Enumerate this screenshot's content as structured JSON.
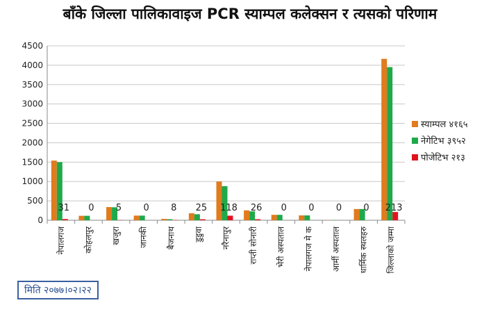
{
  "chart_data": {
    "type": "bar",
    "title": "बाँके जिल्ला पालिकावाइज PCR स्याम्पल कलेक्सन र त्यसको परिणाम",
    "categories": [
      "नेपालगज",
      "कोहलपुर",
      "खजुरा",
      "जानकी",
      "बैजनाथ",
      "डुडुवा",
      "नरैनापुर",
      "राप्ती सोनारी",
      "भेरी अस्पताल",
      "नेपालगज मे क",
      "आर्मी अस्पताल",
      "धार्मिक स्थलहरु",
      "जिल्लाको जम्मा"
    ],
    "series": [
      {
        "name": "स्याम्पल ४१६५",
        "color": "#e07b1e",
        "values": [
          1540,
          115,
          340,
          120,
          35,
          180,
          1000,
          255,
          140,
          125,
          5,
          290,
          4165
        ]
      },
      {
        "name": "नेगेटिभ ३९५२",
        "color": "#1fa94b",
        "values": [
          1500,
          115,
          335,
          120,
          27,
          155,
          880,
          230,
          140,
          125,
          5,
          290,
          3952
        ]
      },
      {
        "name": "पोजेटिभ  २१३",
        "color": "#e0141e",
        "values": [
          31,
          0,
          5,
          0,
          8,
          25,
          118,
          26,
          0,
          0,
          0,
          0,
          213
        ]
      }
    ],
    "data_labels": [
      "31",
      "0",
      "5",
      "0",
      "8",
      "25",
      "118",
      "26",
      "0",
      "0",
      "0",
      "0",
      "213"
    ],
    "yticks": [
      "0",
      "500",
      "1000",
      "1500",
      "2000",
      "2500",
      "3000",
      "3500",
      "4000",
      "4500"
    ],
    "ylim": [
      0,
      4500
    ],
    "grid": true,
    "legend_position": "right"
  },
  "footer": {
    "date_label": "मिति २०७७।०२।२२",
    "box_color": "#3a5fa0"
  }
}
